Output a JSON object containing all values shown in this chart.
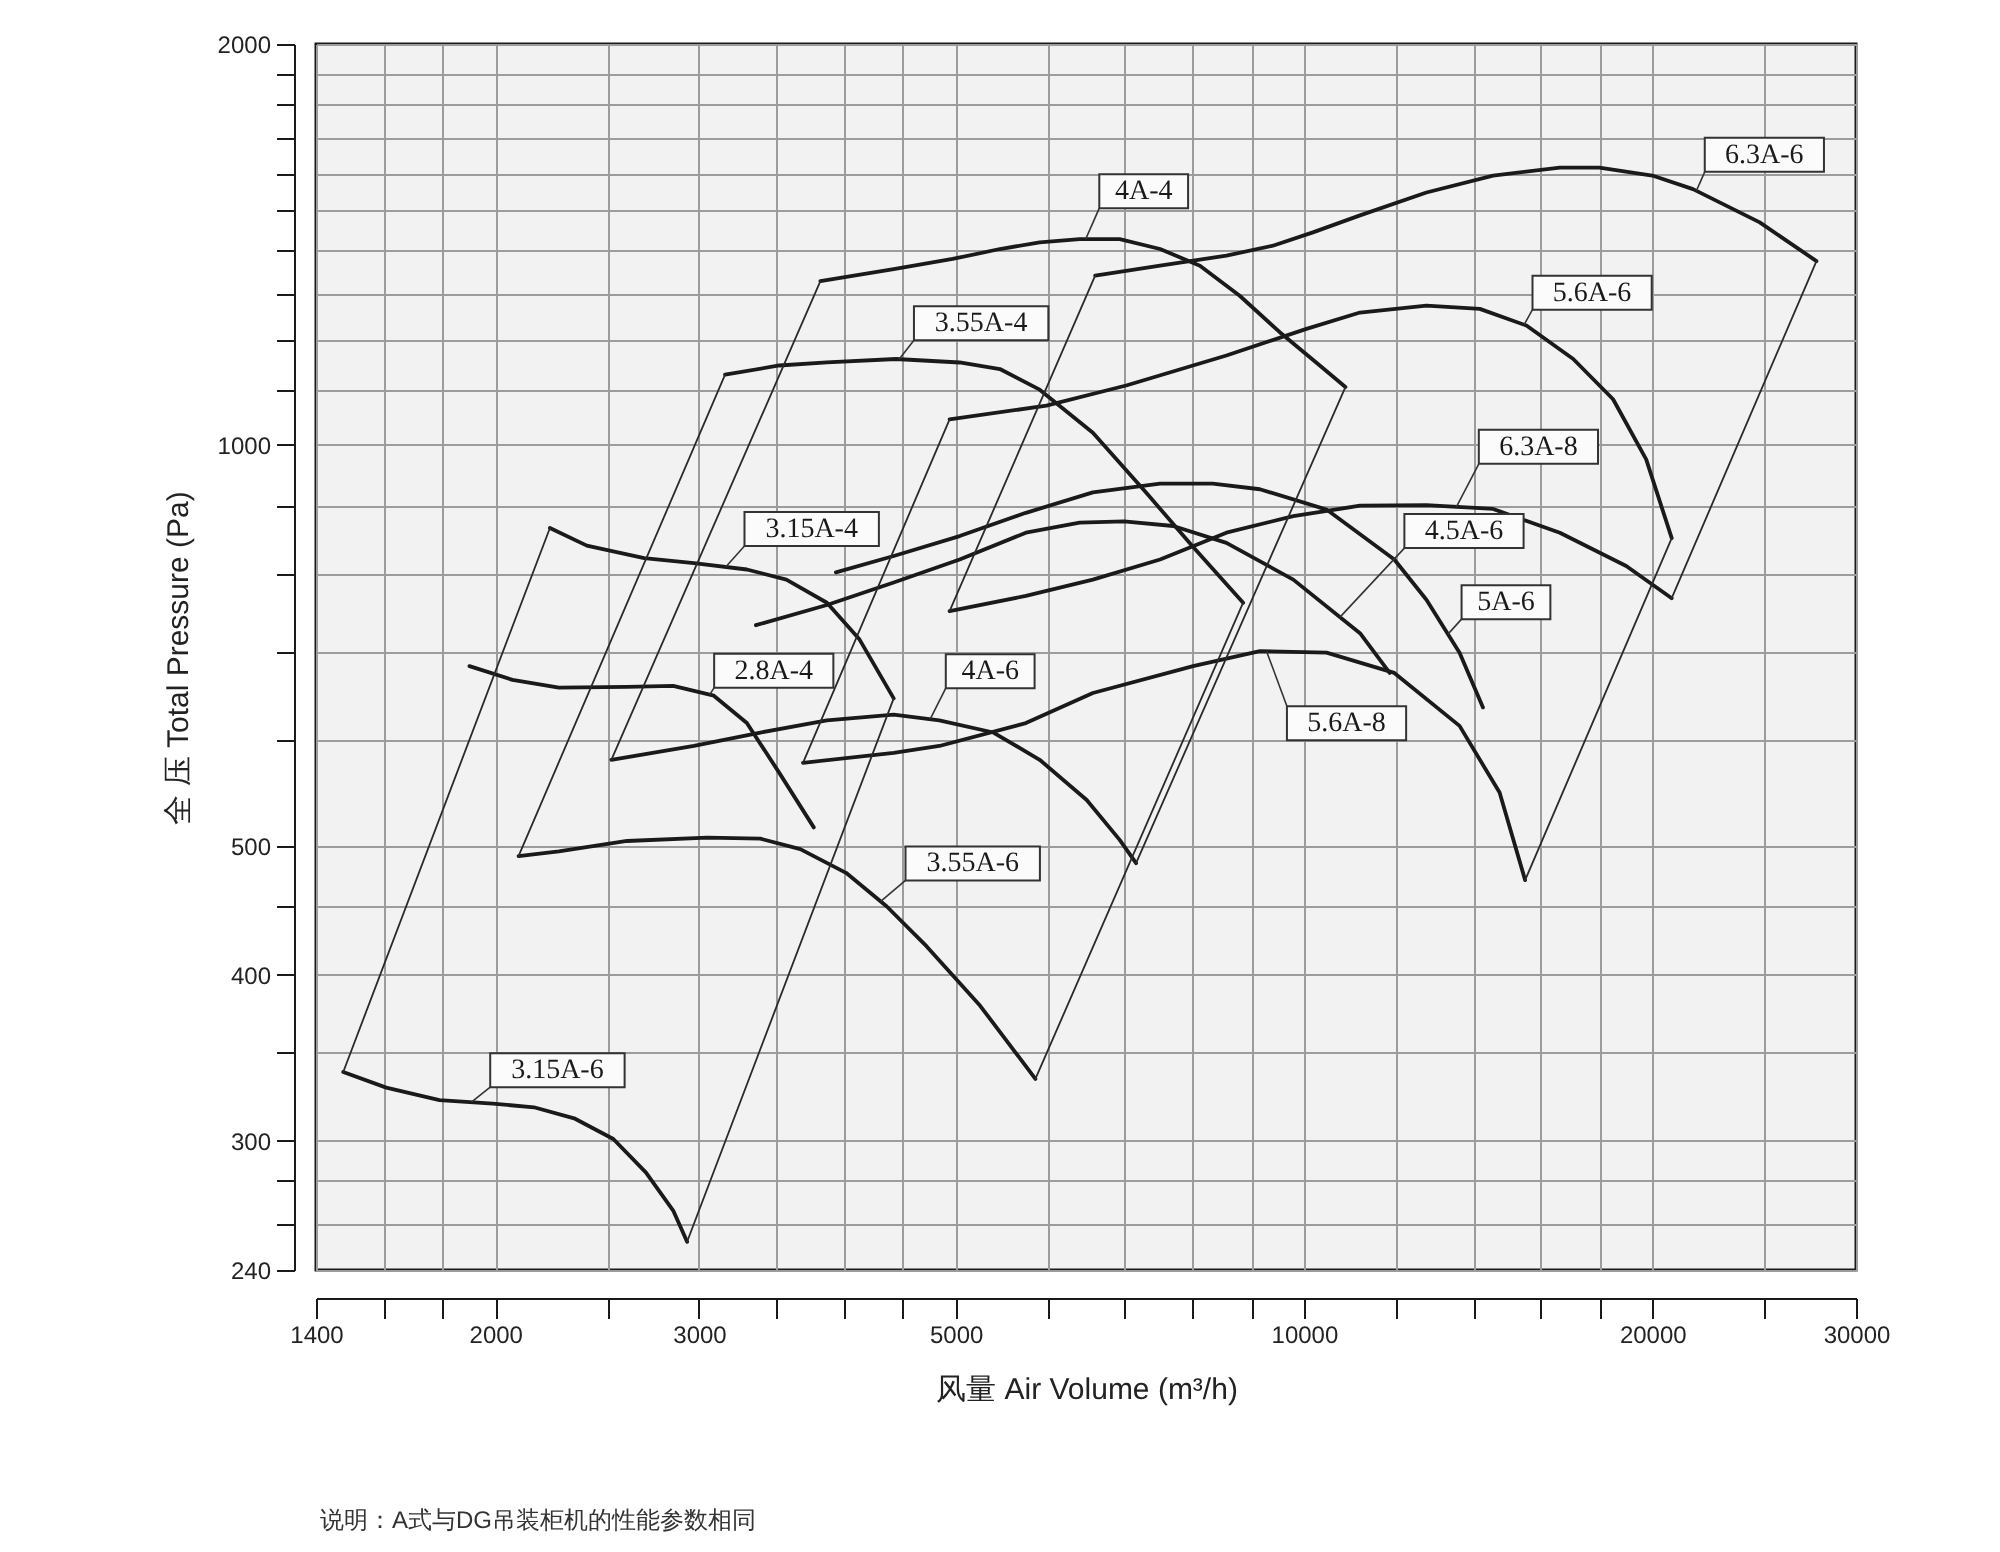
{
  "chart_data": {
    "type": "line",
    "xlabel": "风量 Air Volume (m³/h)",
    "ylabel": "全 压 Total Pressure (Pa)",
    "annotations": [
      "说明：A式与DG吊装柜机的性能参数相同"
    ],
    "log": "xy",
    "grid": true,
    "xlim": [
      1400,
      30000
    ],
    "ylim": [
      240,
      2000
    ],
    "xticks": [
      1400,
      {
        "value": 1600,
        "label": null
      },
      {
        "value": 1800,
        "label": null
      },
      2000,
      {
        "value": 2500,
        "label": null
      },
      3000,
      {
        "value": 3500,
        "label": null
      },
      {
        "value": 4000,
        "label": null
      },
      {
        "value": 4500,
        "label": null
      },
      5000,
      {
        "value": 6000,
        "label": null
      },
      {
        "value": 7000,
        "label": null
      },
      {
        "value": 8000,
        "label": null
      },
      {
        "value": 9000,
        "label": null
      },
      10000,
      {
        "value": 12000,
        "label": null
      },
      {
        "value": 14000,
        "label": null
      },
      {
        "value": 16000,
        "label": null
      },
      {
        "value": 18000,
        "label": null
      },
      20000,
      {
        "value": 25000,
        "label": null
      },
      30000
    ],
    "yticks": [
      240,
      {
        "value": 260,
        "label": null
      },
      {
        "value": 280,
        "label": null
      },
      300,
      {
        "value": 350,
        "label": null
      },
      400,
      {
        "value": 450,
        "label": null
      },
      500,
      {
        "value": 600,
        "label": null
      },
      {
        "value": 700,
        "label": null
      },
      {
        "value": 800,
        "label": null
      },
      {
        "value": 900,
        "label": null
      },
      1000,
      {
        "value": 1100,
        "label": null
      },
      {
        "value": 1200,
        "label": null
      },
      {
        "value": 1300,
        "label": null
      },
      {
        "value": 1400,
        "label": null
      },
      {
        "value": 1500,
        "label": null
      },
      {
        "value": 1600,
        "label": null
      },
      {
        "value": 1700,
        "label": null
      },
      {
        "value": 1800,
        "label": null
      },
      {
        "value": 1900,
        "label": null
      },
      2000
    ],
    "series": [
      {
        "name": "3.15A-6",
        "color": "#1a1a1a",
        "x": [
          1478,
          1610,
          1790,
          1990,
          2160,
          2340,
          2530,
          2700,
          2850,
          2930
        ],
        "values": [
          338,
          329,
          322,
          320,
          318,
          312,
          301,
          284,
          266,
          252
        ]
      },
      {
        "name": "2.8A-4",
        "color": "#1a1a1a",
        "x": [
          1900,
          2070,
          2270,
          2600,
          2850,
          3090,
          3300,
          3520,
          3770
        ],
        "values": [
          682,
          666,
          657,
          658,
          659,
          648,
          618,
          567,
          516
        ]
      },
      {
        "name": "3.15A-4",
        "color": "#1a1a1a",
        "x": [
          2230,
          2400,
          2690,
          2970,
          3300,
          3570,
          3870,
          4130,
          4420
        ],
        "values": [
          866,
          840,
          822,
          815,
          806,
          792,
          761,
          714,
          645
        ]
      },
      {
        "name": "3.55A-6",
        "color": "#1a1a1a",
        "x": [
          2095,
          2270,
          2600,
          3050,
          3390,
          3670,
          4020,
          4360,
          4720,
          5250,
          5860
        ],
        "values": [
          491,
          495,
          504,
          507,
          506,
          497,
          477,
          450,
          420,
          379,
          334
        ]
      },
      {
        "name": "3.55A-4",
        "color": "#1a1a1a",
        "x": [
          3160,
          3520,
          3870,
          4440,
          5040,
          5460,
          5910,
          6570,
          7310,
          8000,
          8860
        ],
        "values": [
          1129,
          1147,
          1153,
          1160,
          1153,
          1140,
          1100,
          1021,
          920,
          840,
          761
        ]
      },
      {
        "name": "4A-6",
        "color": "#1a1a1a",
        "x": [
          2520,
          2970,
          3390,
          3870,
          4420,
          4840,
          5390,
          5910,
          6490,
          6930,
          7160
        ],
        "values": [
          580,
          594,
          608,
          621,
          627,
          621,
          608,
          580,
          541,
          505,
          485
        ]
      },
      {
        "name": "4A-4",
        "color": "#1a1a1a",
        "x": [
          3820,
          4420,
          4970,
          5460,
          5910,
          6400,
          6930,
          7510,
          8130,
          8800,
          9530,
          10320,
          10860
        ],
        "values": [
          1327,
          1355,
          1379,
          1403,
          1419,
          1427,
          1427,
          1403,
          1363,
          1294,
          1215,
          1147,
          1105
        ]
      },
      {
        "name": "4.5A-6",
        "color": "#1a1a1a",
        "x": [
          3360,
          3870,
          4420,
          5040,
          5750,
          6400,
          6990,
          7710,
          8570,
          9790,
          11180,
          11860
        ],
        "values": [
          732,
          758,
          788,
          820,
          859,
          874,
          876,
          869,
          844,
          792,
          722,
          674
        ]
      },
      {
        "name": "5A-6",
        "color": "#1a1a1a",
        "x": [
          3940,
          4420,
          5040,
          5750,
          6570,
          7510,
          8340,
          9160,
          10460,
          11970,
          12760,
          13630,
          14280
        ],
        "values": [
          802,
          825,
          854,
          889,
          921,
          935,
          935,
          926,
          894,
          820,
          765,
          698,
          635
        ]
      },
      {
        "name": "5.6A-8",
        "color": "#1a1a1a",
        "x": [
          3690,
          4420,
          4840,
          5750,
          6570,
          8020,
          9160,
          10460,
          11970,
          13630,
          14760,
          15530
        ],
        "values": [
          577,
          587,
          594,
          618,
          651,
          682,
          700,
          698,
          674,
          615,
          548,
          471
        ]
      },
      {
        "name": "5.6A-6",
        "color": "#1a1a1a",
        "x": [
          4940,
          5990,
          7020,
          8570,
          10050,
          11180,
          12760,
          14190,
          15570,
          17090,
          18500,
          19760,
          20790
        ],
        "values": [
          1045,
          1070,
          1108,
          1167,
          1222,
          1257,
          1272,
          1265,
          1229,
          1160,
          1082,
          975,
          851
        ]
      },
      {
        "name": "6.3A-8",
        "color": "#1a1a1a",
        "x": [
          4940,
          5750,
          6570,
          7510,
          8570,
          9790,
          11180,
          12760,
          14570,
          16640,
          18990,
          20790
        ],
        "values": [
          750,
          770,
          792,
          820,
          859,
          884,
          900,
          901,
          895,
          859,
          811,
          767
        ]
      },
      {
        "name": "6.3A-6",
        "color": "#1a1a1a",
        "x": [
          6600,
          7510,
          8570,
          9400,
          10180,
          11180,
          12760,
          14570,
          16640,
          18000,
          20000,
          21690,
          24770,
          27730
        ],
        "values": [
          1340,
          1363,
          1387,
          1411,
          1444,
          1487,
          1547,
          1593,
          1615,
          1615,
          1593,
          1556,
          1469,
          1374
        ]
      },
      {
        "color": "#2a2a2a",
        "x": [
          1478,
          2230
        ],
        "values": [
          338,
          866
        ]
      },
      {
        "color": "#2a2a2a",
        "x": [
          2930,
          4420
        ],
        "values": [
          252,
          645
        ]
      },
      {
        "color": "#2a2a2a",
        "x": [
          2095,
          3160
        ],
        "values": [
          491,
          1129
        ]
      },
      {
        "color": "#2a2a2a",
        "x": [
          5860,
          8860
        ],
        "values": [
          334,
          761
        ]
      },
      {
        "color": "#2a2a2a",
        "x": [
          2520,
          3820
        ],
        "values": [
          580,
          1327
        ]
      },
      {
        "color": "#2a2a2a",
        "x": [
          7160,
          10860
        ],
        "values": [
          485,
          1105
        ]
      },
      {
        "color": "#2a2a2a",
        "x": [
          3690,
          4940
        ],
        "values": [
          577,
          1045
        ]
      },
      {
        "color": "#2a2a2a",
        "x": [
          15530,
          20790
        ],
        "values": [
          471,
          851
        ]
      },
      {
        "color": "#2a2a2a",
        "x": [
          4940,
          6600
        ],
        "values": [
          750,
          1340
        ]
      },
      {
        "color": "#2a2a2a",
        "x": [
          20790,
          27730
        ],
        "values": [
          767,
          1374
        ]
      }
    ]
  }
}
